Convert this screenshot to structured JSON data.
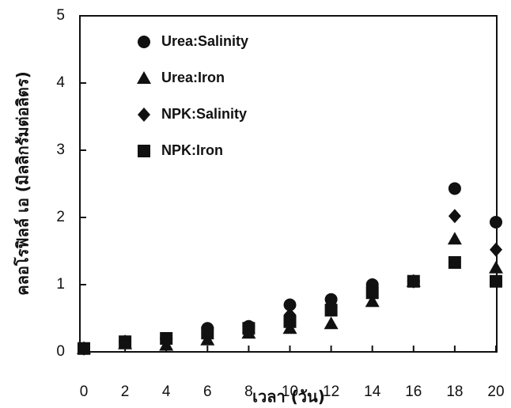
{
  "chart_data": {
    "type": "scatter",
    "x_label": "เวลา (วัน)",
    "y_label": "คลอโรฟิลล์ เอ (มิลลิกรัมต่อลิตร)",
    "x": [
      0,
      2,
      4,
      6,
      8,
      10,
      12,
      14,
      16,
      18,
      20
    ],
    "series": [
      {
        "name": "Urea:Salinity",
        "marker": "circle",
        "color": "#111111",
        "values": [
          0.05,
          0.15,
          0.2,
          0.35,
          0.38,
          0.7,
          0.78,
          1.0,
          1.05,
          2.43,
          1.93
        ]
      },
      {
        "name": "Urea:Iron",
        "marker": "triangle",
        "color": "#111111",
        "values": [
          0.05,
          0.12,
          0.1,
          0.18,
          0.28,
          0.35,
          0.42,
          0.75,
          1.05,
          1.68,
          1.25
        ]
      },
      {
        "name": "NPK:Salinity",
        "marker": "diamond",
        "color": "#111111",
        "values": [
          0.05,
          0.15,
          0.18,
          0.3,
          0.35,
          0.55,
          0.7,
          0.95,
          1.05,
          2.02,
          1.52
        ]
      },
      {
        "name": "NPK:Iron",
        "marker": "square",
        "color": "#111111",
        "values": [
          0.05,
          0.15,
          0.2,
          0.28,
          0.35,
          0.45,
          0.62,
          0.88,
          1.05,
          1.33,
          1.05
        ]
      }
    ],
    "xlim": [
      0,
      20
    ],
    "xticks": [
      0,
      2,
      4,
      6,
      8,
      10,
      12,
      14,
      16,
      18,
      20
    ],
    "ylim": [
      0,
      5
    ],
    "yticks": [
      0,
      1,
      2,
      3,
      4,
      5
    ]
  }
}
